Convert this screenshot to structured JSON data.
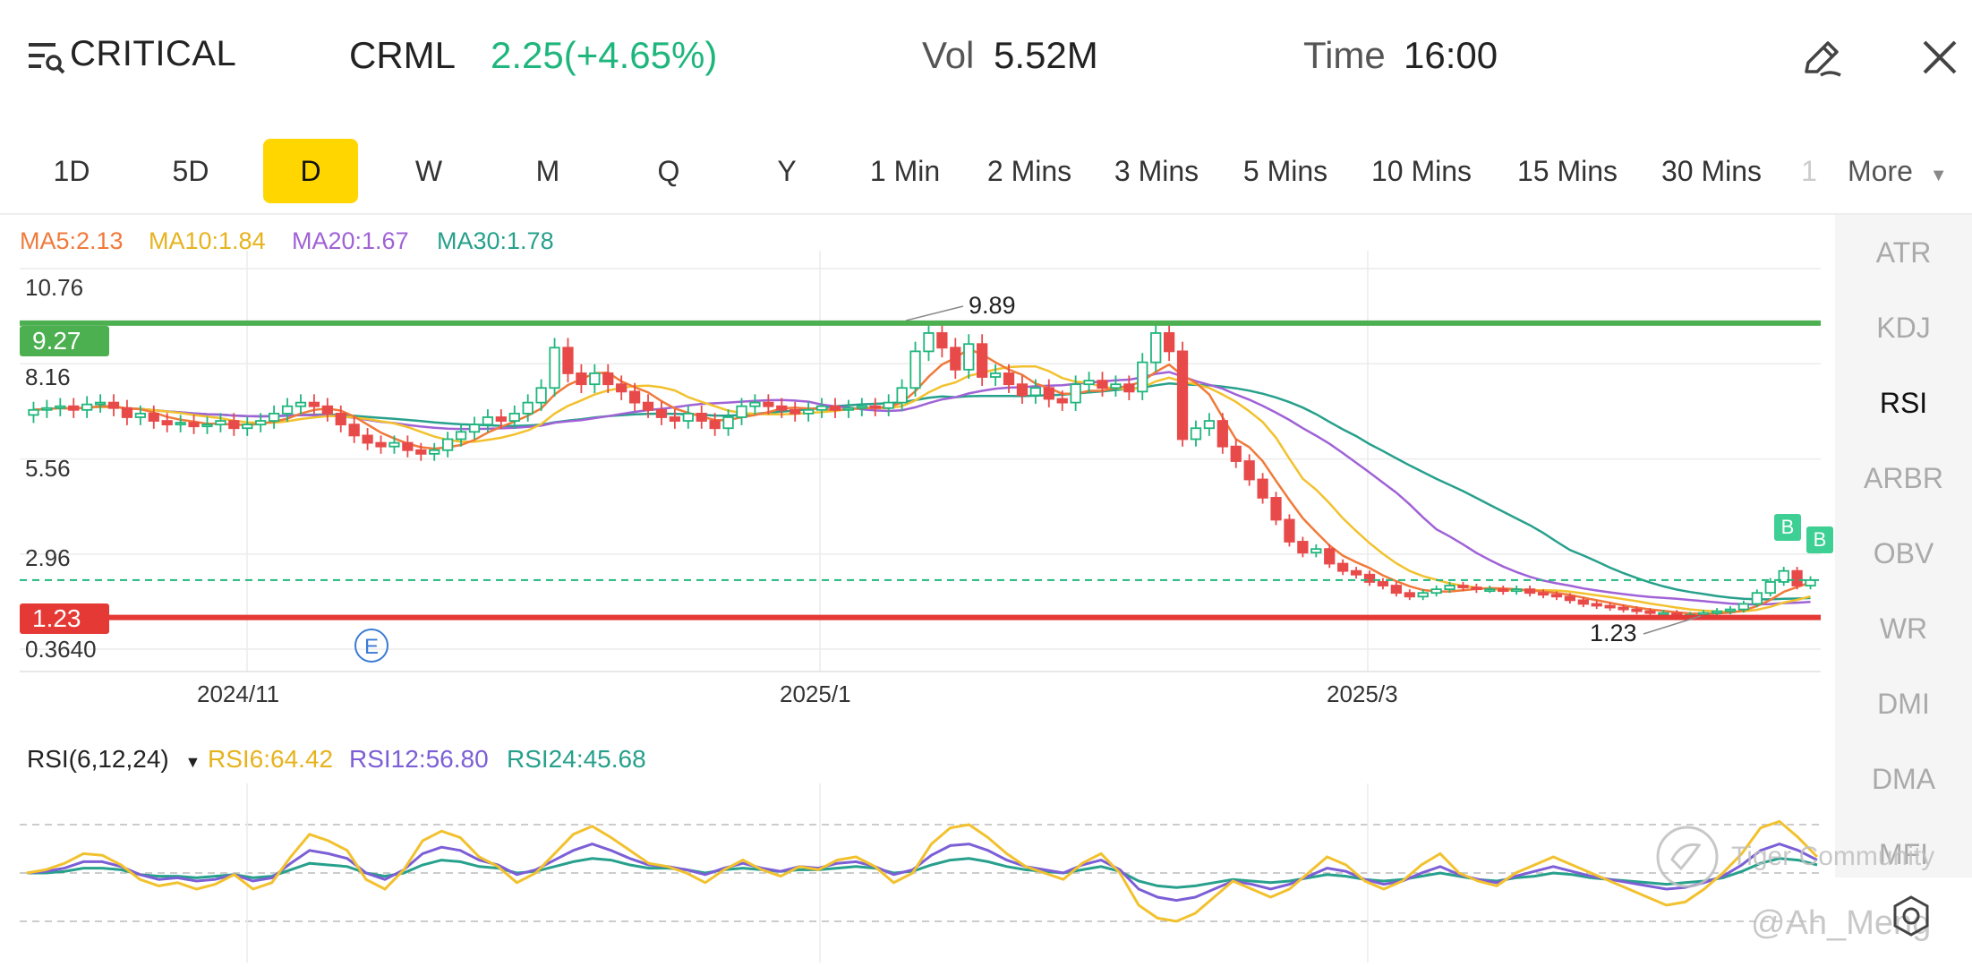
{
  "header": {
    "menu_icon": "menu-search-icon",
    "title": "CRITICAL",
    "symbol": "CRML",
    "price_change": "2.25(+4.65%)",
    "vol_label": "Vol",
    "vol_value": "5.52M",
    "time_label": "Time",
    "time_value": "16:00",
    "edit_icon": "pencil-icon",
    "close_icon": "close-icon"
  },
  "tabs": [
    "1D",
    "5D",
    "D",
    "W",
    "M",
    "Q",
    "Y",
    "1 Min",
    "2 Mins",
    "3 Mins",
    "5 Mins",
    "10 Mins",
    "15 Mins",
    "30 Mins",
    "1"
  ],
  "active_tab": "D",
  "more_label": "More",
  "side_indicators": [
    "ATR",
    "KDJ",
    "RSI",
    "ARBR",
    "OBV",
    "WR",
    "DMI",
    "DMA",
    "MFI"
  ],
  "active_indicator": "RSI",
  "ma_legend": {
    "ma5": "MA5:2.13",
    "ma10": "MA10:1.84",
    "ma20": "MA20:1.67",
    "ma30": "MA30:1.78"
  },
  "colors": {
    "up": "#1fb67d",
    "down": "#e84a4a",
    "ma5": "#f07a3a",
    "ma10": "#f2c12e",
    "ma20": "#a062d6",
    "ma30": "#27a08c",
    "resistance": "#4caf50",
    "support": "#e53935",
    "active_tab": "#ffd600"
  },
  "rsi_legend": {
    "title": "RSI(6,12,24)",
    "rsi6": "RSI6:64.42",
    "rsi12": "RSI12:56.80",
    "rsi24": "RSI24:45.68"
  },
  "watermark": {
    "brand": "Tiger Community",
    "user": "@Ah_Meng"
  },
  "chart_data": {
    "type": "candlestick",
    "y_ticks": [
      "10.76",
      "8.16",
      "5.56",
      "2.96",
      "0.3640"
    ],
    "ylim": [
      0.364,
      10.76
    ],
    "x_ticks": [
      "2024/11",
      "2025/1",
      "2025/3"
    ],
    "resistance": {
      "label": "9.27",
      "value": 9.27
    },
    "support": {
      "label": "1.23",
      "value": 1.23
    },
    "last_price": 2.25,
    "annotations": {
      "high": "9.89",
      "low": "1.23",
      "event": "E",
      "buy": "B"
    },
    "close_series": [
      6.9,
      6.95,
      7.0,
      6.9,
      7.05,
      7.1,
      6.95,
      6.7,
      6.8,
      6.6,
      6.5,
      6.55,
      6.45,
      6.5,
      6.6,
      6.4,
      6.5,
      6.6,
      6.8,
      7.0,
      7.1,
      7.0,
      6.8,
      6.5,
      6.2,
      6.0,
      5.9,
      6.0,
      5.8,
      5.7,
      5.8,
      6.1,
      6.3,
      6.5,
      6.7,
      6.6,
      6.8,
      7.1,
      7.5,
      8.6,
      7.9,
      7.6,
      7.9,
      7.6,
      7.4,
      7.1,
      6.9,
      6.7,
      6.6,
      6.8,
      6.6,
      6.4,
      6.7,
      7.0,
      7.1,
      7.0,
      6.9,
      6.8,
      6.9,
      7.0,
      6.9,
      6.95,
      7.0,
      6.95,
      7.1,
      7.5,
      8.5,
      9.0,
      8.6,
      8.0,
      8.7,
      7.8,
      7.9,
      7.6,
      7.3,
      7.5,
      7.2,
      7.1,
      7.6,
      7.7,
      7.5,
      7.6,
      7.4,
      8.2,
      9.0,
      8.5,
      6.1,
      6.4,
      6.6,
      5.9,
      5.5,
      5.0,
      4.5,
      3.9,
      3.3,
      3.0,
      3.1,
      2.7,
      2.5,
      2.4,
      2.2,
      2.1,
      1.9,
      1.8,
      1.9,
      2.0,
      2.1,
      2.05,
      2.0,
      2.0,
      1.95,
      2.0,
      1.9,
      1.85,
      1.8,
      1.7,
      1.6,
      1.55,
      1.5,
      1.45,
      1.4,
      1.35,
      1.35,
      1.3,
      1.3,
      1.35,
      1.4,
      1.45,
      1.6,
      1.9,
      2.2,
      2.5,
      2.1,
      2.25
    ],
    "rsi6": [
      50,
      52,
      56,
      62,
      61,
      55,
      46,
      42,
      44,
      40,
      43,
      49,
      40,
      44,
      60,
      74,
      70,
      64,
      46,
      40,
      52,
      70,
      76,
      72,
      60,
      54,
      44,
      50,
      62,
      74,
      79,
      72,
      64,
      56,
      54,
      50,
      44,
      52,
      58,
      52,
      48,
      54,
      52,
      58,
      60,
      54,
      44,
      50,
      68,
      78,
      80,
      72,
      62,
      54,
      50,
      46,
      56,
      62,
      50,
      30,
      22,
      20,
      25,
      35,
      45,
      40,
      35,
      40,
      50,
      60,
      55,
      45,
      40,
      45,
      55,
      62,
      50,
      45,
      42,
      50,
      55,
      60,
      55,
      50,
      45,
      40,
      35,
      30,
      32,
      40,
      50,
      62,
      78,
      82,
      72,
      60
    ],
    "rsi12": [
      50,
      51,
      53,
      57,
      57,
      54,
      49,
      46,
      47,
      45,
      46,
      49,
      45,
      47,
      56,
      64,
      62,
      59,
      50,
      46,
      52,
      62,
      66,
      64,
      58,
      55,
      49,
      52,
      58,
      64,
      68,
      64,
      59,
      55,
      54,
      52,
      49,
      53,
      56,
      53,
      51,
      54,
      53,
      56,
      57,
      54,
      49,
      52,
      61,
      67,
      68,
      64,
      58,
      54,
      52,
      50,
      55,
      58,
      52,
      40,
      35,
      33,
      35,
      40,
      45,
      43,
      40,
      43,
      48,
      53,
      51,
      46,
      43,
      45,
      50,
      54,
      49,
      46,
      44,
      48,
      51,
      54,
      51,
      48,
      46,
      44,
      42,
      40,
      41,
      44,
      48,
      55,
      64,
      68,
      64,
      58
    ],
    "rsi24": [
      50,
      50,
      51,
      53,
      53,
      52,
      49,
      48,
      48,
      47,
      48,
      49,
      47,
      48,
      52,
      56,
      55,
      54,
      50,
      48,
      50,
      55,
      58,
      57,
      54,
      53,
      50,
      51,
      54,
      57,
      59,
      58,
      55,
      53,
      53,
      52,
      50,
      52,
      53,
      52,
      51,
      52,
      52,
      53,
      54,
      53,
      50,
      51,
      55,
      58,
      59,
      57,
      54,
      52,
      51,
      50,
      52,
      54,
      51,
      45,
      42,
      41,
      42,
      44,
      46,
      45,
      44,
      45,
      47,
      49,
      48,
      46,
      45,
      46,
      48,
      50,
      48,
      46,
      45,
      47,
      48,
      50,
      49,
      47,
      46,
      45,
      44,
      43,
      44,
      45,
      47,
      51,
      56,
      59,
      58,
      55
    ]
  }
}
